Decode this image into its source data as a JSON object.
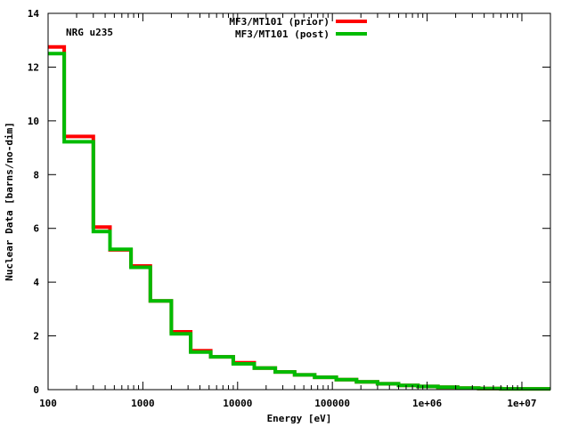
{
  "chart_data": {
    "type": "line",
    "step": true,
    "xscale": "log",
    "xlabel": "Energy [eV]",
    "ylabel": "Nuclear Data [barns/no-dim]",
    "annotation": "NRG u235",
    "xlim": [
      100,
      20000000
    ],
    "ylim": [
      0,
      14
    ],
    "grid": false,
    "legend_position": "top-center",
    "xticks": [
      100,
      1000,
      10000,
      100000,
      1000000,
      10000000
    ],
    "xtick_labels": [
      "100",
      "1000",
      "10000",
      "100000",
      "1e+06",
      "1e+07"
    ],
    "yticks": [
      0,
      2,
      4,
      6,
      8,
      10,
      12,
      14
    ],
    "ytick_labels": [
      "0",
      "2",
      "4",
      "6",
      "8",
      "10",
      "12",
      "14"
    ],
    "bin_edges": [
      100,
      148,
      300,
      450,
      750,
      1200,
      2000,
      3200,
      5200,
      9000,
      15000,
      25000,
      40000,
      65000,
      110000,
      180000,
      300000,
      500000,
      800000,
      1300000,
      2100000,
      3500000,
      6000000,
      20000000
    ],
    "series": [
      {
        "name": "MF3/MT101 (prior)",
        "color": "#ff0000",
        "values": [
          12.75,
          9.42,
          6.05,
          5.2,
          4.6,
          3.3,
          2.15,
          1.45,
          1.22,
          1.0,
          0.8,
          0.66,
          0.55,
          0.46,
          0.37,
          0.29,
          0.22,
          0.16,
          0.12,
          0.09,
          0.06,
          0.04,
          0.03
        ]
      },
      {
        "name": "MF3/MT101 (post)",
        "color": "#00bb00",
        "values": [
          12.5,
          9.22,
          5.88,
          5.22,
          4.55,
          3.3,
          2.08,
          1.4,
          1.22,
          0.96,
          0.8,
          0.66,
          0.55,
          0.46,
          0.37,
          0.29,
          0.22,
          0.16,
          0.12,
          0.09,
          0.06,
          0.04,
          0.03
        ]
      }
    ]
  }
}
